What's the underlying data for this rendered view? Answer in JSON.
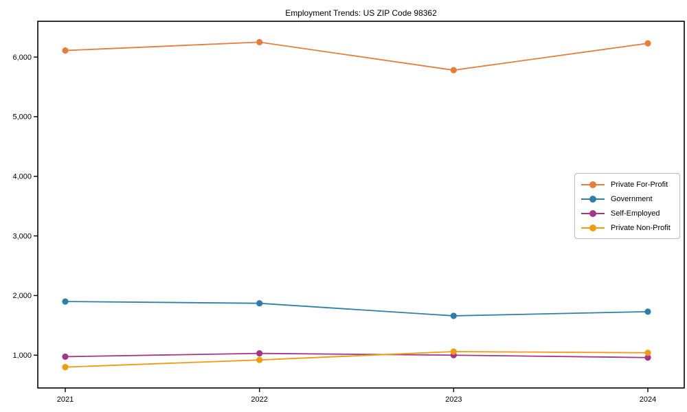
{
  "chart_data": {
    "type": "line",
    "title": "Employment Trends: US ZIP Code 98362",
    "categories": [
      "2021",
      "2022",
      "2023",
      "2024"
    ],
    "series": [
      {
        "name": "Private For-Profit",
        "color": "#e67d3c",
        "values": [
          6110,
          6250,
          5780,
          6230
        ]
      },
      {
        "name": "Government",
        "color": "#2e7fa8",
        "values": [
          1900,
          1870,
          1660,
          1730
        ]
      },
      {
        "name": "Self-Employed",
        "color": "#a23584",
        "values": [
          975,
          1030,
          1000,
          960
        ]
      },
      {
        "name": "Private Non-Profit",
        "color": "#f09b11",
        "values": [
          800,
          920,
          1060,
          1040
        ]
      }
    ],
    "xlabel": "",
    "ylabel": "",
    "ylim": [
      450,
      6600
    ],
    "yticks": [
      1000,
      2000,
      3000,
      4000,
      5000,
      6000
    ],
    "ytick_labels": [
      "1,000",
      "2,000",
      "3,000",
      "4,000",
      "5,000",
      "6,000"
    ],
    "legend_position": "center right",
    "grid": false,
    "axis_color": "#000000",
    "background_color": "#ffffff"
  }
}
